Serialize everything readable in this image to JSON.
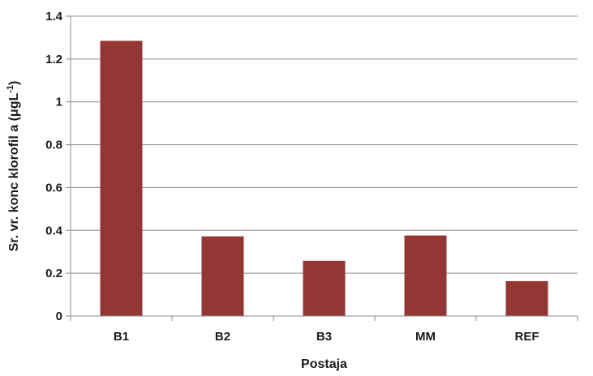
{
  "chart_data": {
    "type": "bar",
    "categories": [
      "B1",
      "B2",
      "B3",
      "MM",
      "REF"
    ],
    "values": [
      1.285,
      0.372,
      0.258,
      0.376,
      0.163
    ],
    "title": "",
    "xlabel": "Postaja",
    "ylabel": "Sr. vr. konc klorofil a (μgL",
    "ylabel_sup": "-1",
    "ylabel_close": ")",
    "ylim": [
      0,
      1.4
    ],
    "yticks": [
      0,
      0.2,
      0.4,
      0.6,
      0.8,
      1,
      1.2,
      1.4
    ],
    "ytick_labels": [
      "0",
      "0.2",
      "0.4",
      "0.6",
      "0.8",
      "1",
      "1.2",
      "1.4"
    ],
    "grid": true,
    "legend": "none",
    "bar_color": "#943634"
  }
}
